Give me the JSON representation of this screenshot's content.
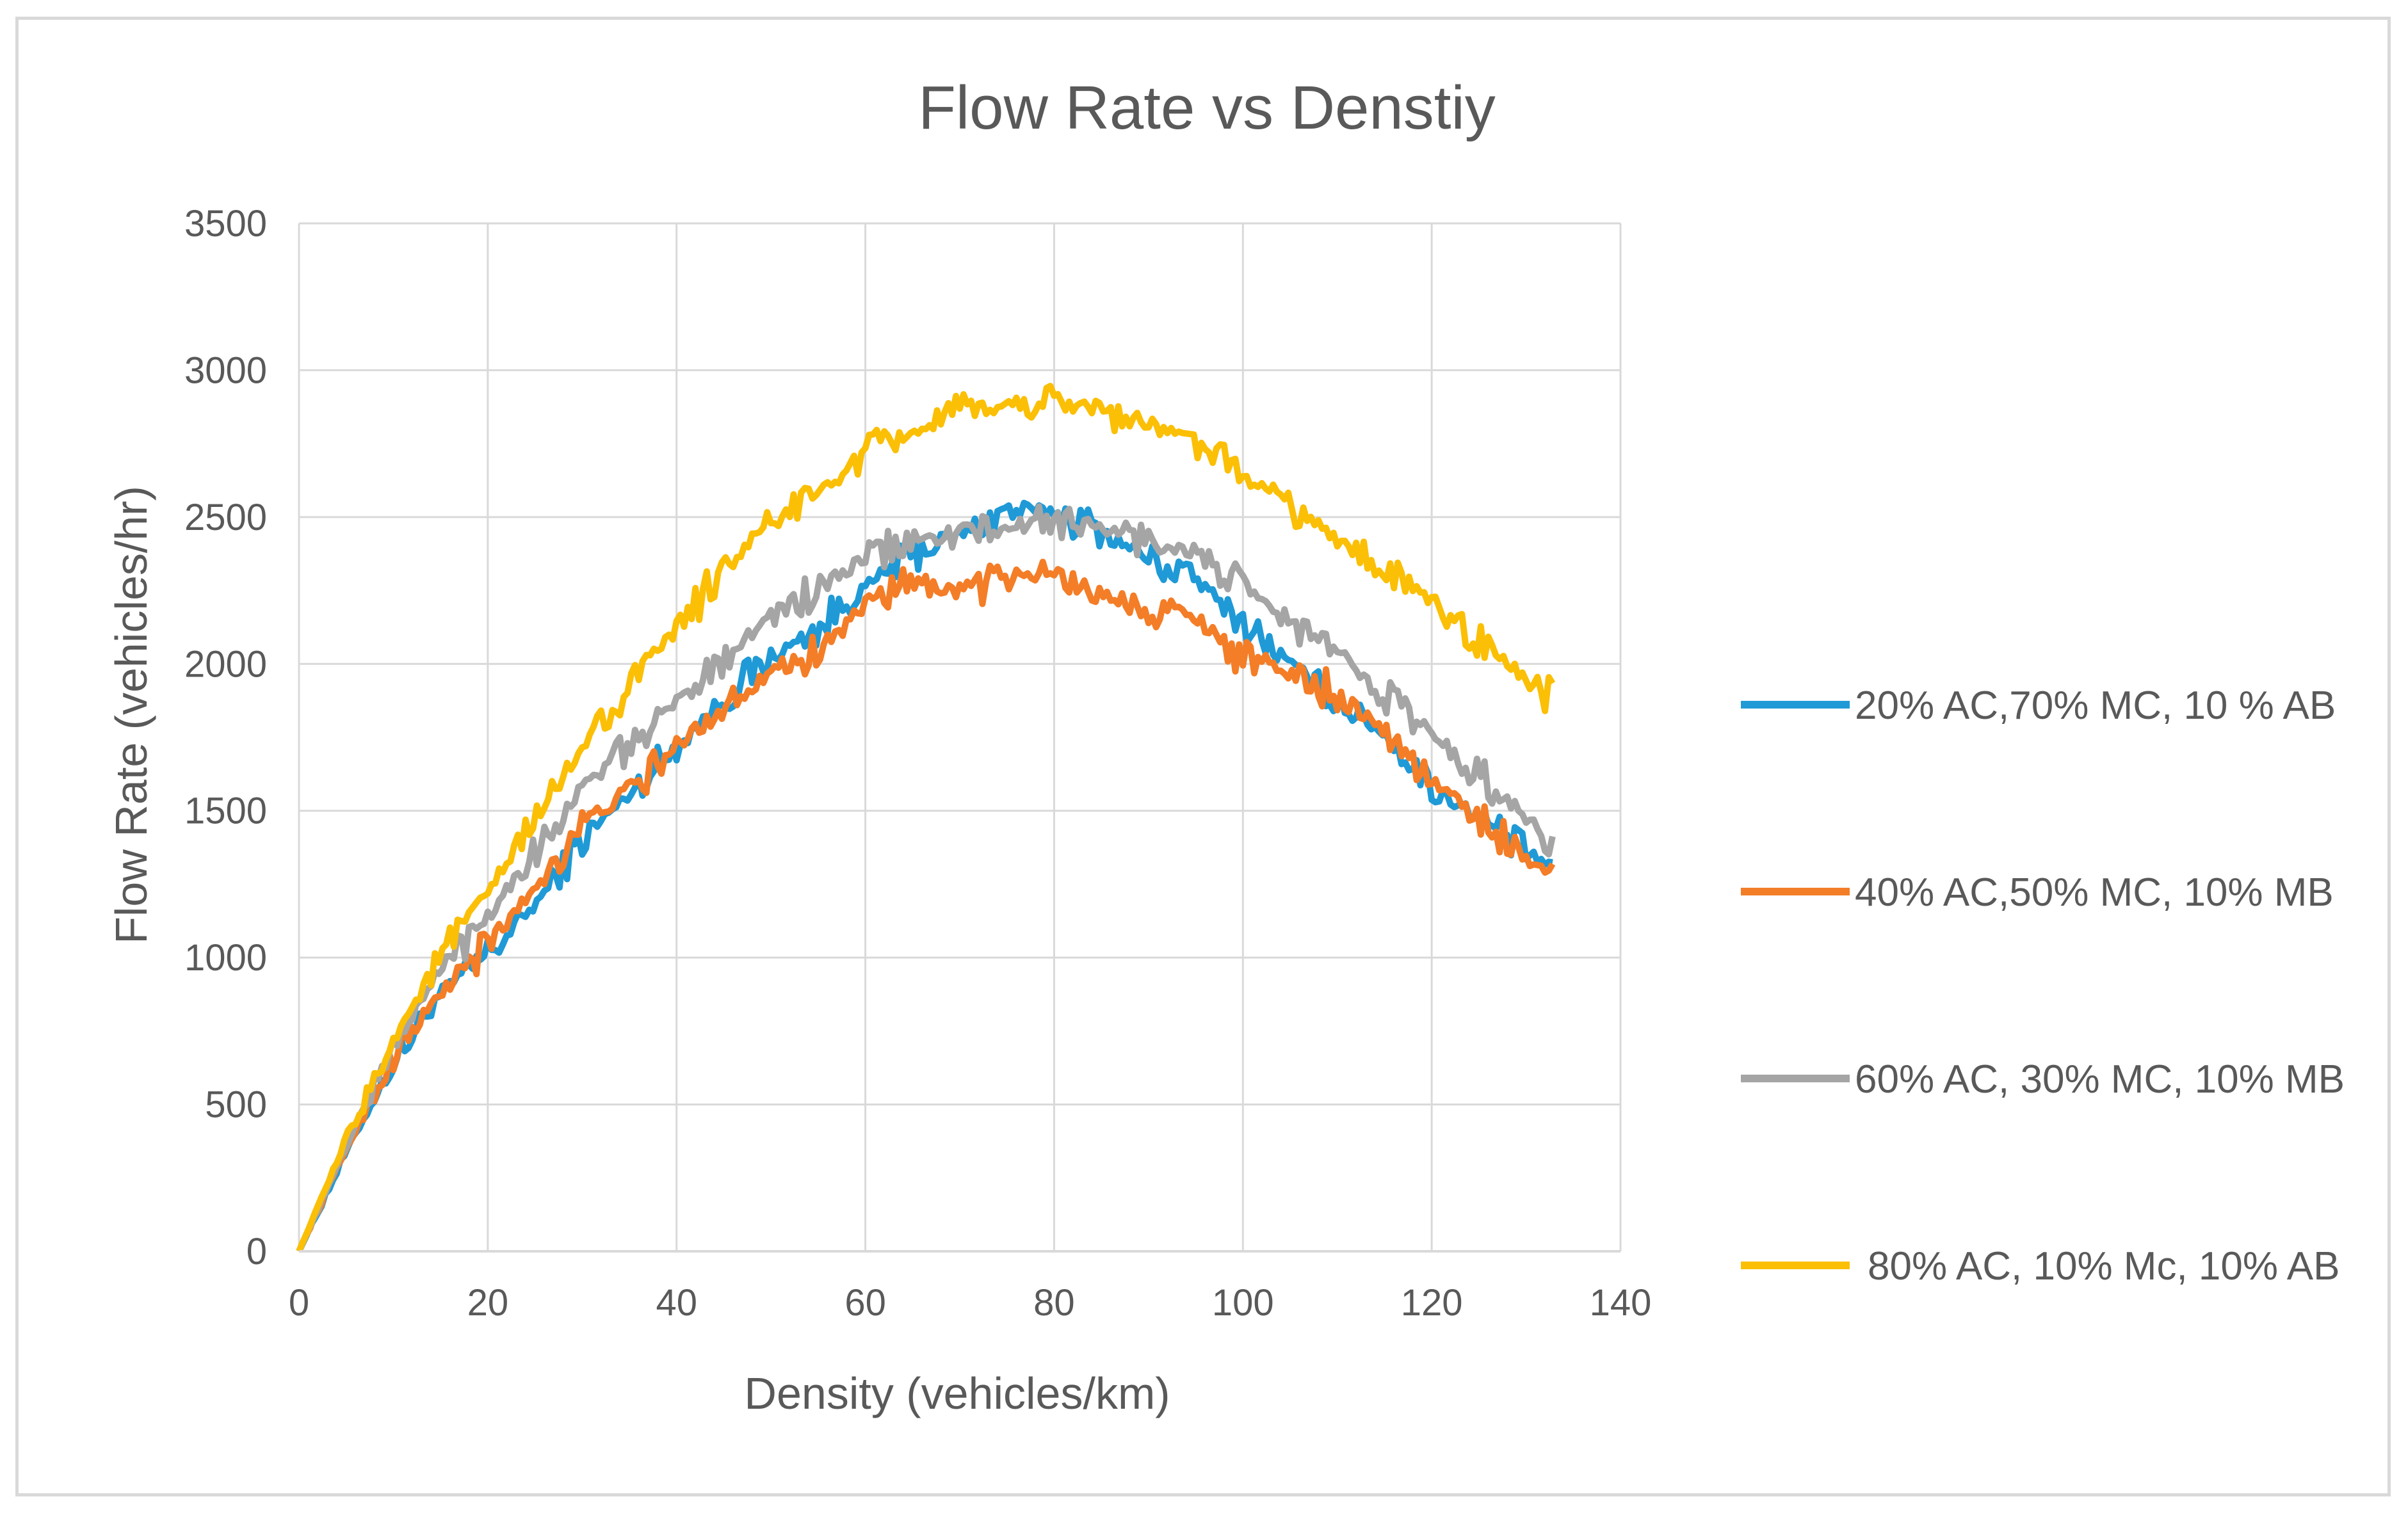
{
  "chart_data": {
    "type": "line",
    "title": "Flow Rate vs Denstiy",
    "xlabel": "Density (vehicles/km)",
    "ylabel": "Flow Rate  (vehicles/hr)",
    "xlim": [
      0,
      140
    ],
    "ylim": [
      0,
      3500
    ],
    "xticks": [
      0,
      20,
      40,
      60,
      80,
      100,
      120,
      140
    ],
    "yticks": [
      0,
      500,
      1000,
      1500,
      2000,
      2500,
      3000,
      3500
    ],
    "grid": true,
    "legend_position": "right",
    "series": [
      {
        "name": "20% AC,70% MC, 10 % AB",
        "color": "#1f9ad6",
        "x": [
          0,
          5,
          10,
          15,
          20,
          25,
          30,
          35,
          40,
          45,
          50,
          55,
          60,
          65,
          70,
          75,
          80,
          85,
          90,
          95,
          100,
          105,
          110,
          115,
          120,
          125,
          130,
          133
        ],
        "y": [
          0,
          340,
          640,
          880,
          1010,
          1180,
          1400,
          1560,
          1720,
          1880,
          2020,
          2120,
          2260,
          2380,
          2440,
          2520,
          2520,
          2450,
          2360,
          2290,
          2140,
          2000,
          1880,
          1760,
          1580,
          1480,
          1360,
          1300
        ]
      },
      {
        "name": "40% AC,50% MC, 10% MB",
        "color": "#f47d27",
        "x": [
          0,
          5,
          10,
          15,
          20,
          25,
          30,
          35,
          40,
          45,
          50,
          55,
          60,
          65,
          70,
          75,
          80,
          85,
          90,
          95,
          100,
          105,
          110,
          115,
          120,
          125,
          130,
          133
        ],
        "y": [
          0,
          350,
          660,
          880,
          1040,
          1240,
          1460,
          1560,
          1720,
          1860,
          1980,
          2040,
          2200,
          2270,
          2250,
          2290,
          2320,
          2230,
          2200,
          2160,
          2020,
          1970,
          1900,
          1770,
          1600,
          1480,
          1340,
          1280
        ]
      },
      {
        "name": "60% AC, 30% MC, 10% MB",
        "color": "#a5a5a5",
        "x": [
          0,
          5,
          10,
          15,
          20,
          25,
          30,
          35,
          40,
          45,
          50,
          55,
          60,
          65,
          70,
          75,
          80,
          85,
          90,
          95,
          100,
          105,
          110,
          115,
          120,
          125,
          130,
          133
        ],
        "y": [
          0,
          360,
          700,
          960,
          1150,
          1360,
          1580,
          1720,
          1870,
          2030,
          2160,
          2250,
          2360,
          2420,
          2440,
          2460,
          2500,
          2460,
          2420,
          2380,
          2260,
          2140,
          2040,
          1900,
          1760,
          1620,
          1480,
          1350
        ]
      },
      {
        "name": "80% AC, 10% Mc, 10% AB",
        "color": "#fbbf06",
        "x": [
          0,
          5,
          10,
          15,
          20,
          25,
          30,
          35,
          40,
          45,
          50,
          55,
          60,
          65,
          70,
          75,
          80,
          85,
          90,
          95,
          100,
          105,
          110,
          115,
          120,
          125,
          130,
          133
        ],
        "y": [
          0,
          380,
          720,
          1000,
          1220,
          1470,
          1720,
          1930,
          2120,
          2320,
          2490,
          2580,
          2710,
          2790,
          2850,
          2880,
          2900,
          2870,
          2810,
          2760,
          2640,
          2540,
          2420,
          2330,
          2210,
          2080,
          1950,
          1870
        ]
      }
    ]
  }
}
